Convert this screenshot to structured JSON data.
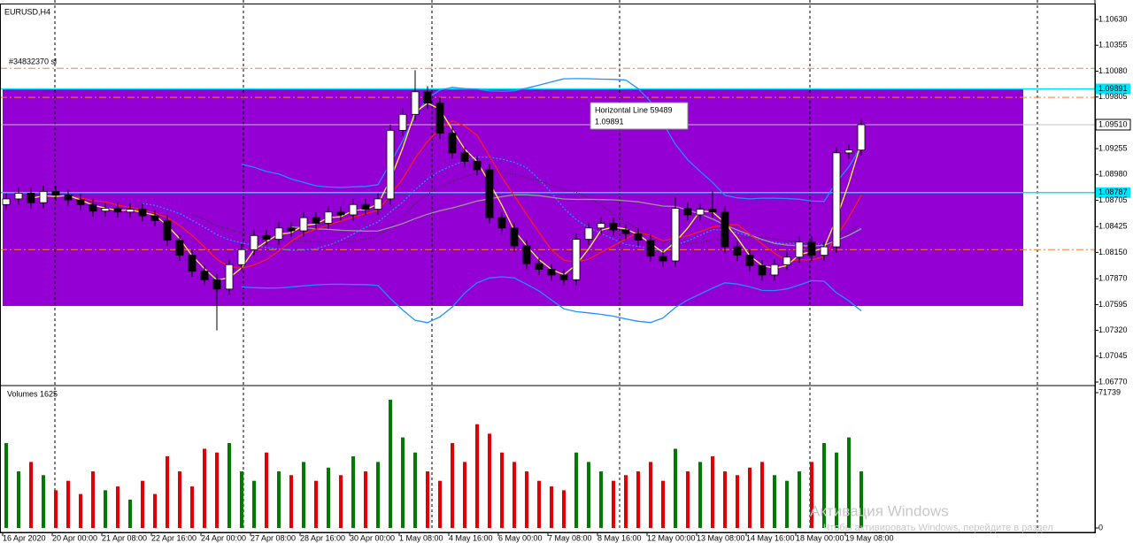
{
  "chart_data": [
    {
      "type": "candlestick",
      "title": "EURUSD,H4",
      "categories": [
        "16 Apr 2020",
        null,
        null,
        null,
        "20 Apr 00:00",
        null,
        null,
        null,
        "21 Apr 08:00",
        null,
        null,
        null,
        "22 Apr 16:00",
        null,
        null,
        null,
        "24 Apr 00:00",
        null,
        null,
        null,
        "27 Apr 08:00",
        null,
        null,
        null,
        "28 Apr 16:00",
        null,
        null,
        null,
        "30 Apr 00:00",
        null,
        null,
        null,
        "1 May 08:00",
        null,
        null,
        null,
        "4 May 16:00",
        null,
        null,
        null,
        "6 May 00:00",
        null,
        null,
        null,
        "7 May 08:00",
        null,
        null,
        null,
        "8 May 16:00",
        null,
        null,
        null,
        "12 May 00:00",
        null,
        null,
        null,
        "13 May 08:00",
        null,
        null,
        null,
        "14 May 16:00",
        null,
        null,
        null,
        "18 May 00:00",
        null,
        null,
        null,
        "19 May 08:00",
        null
      ],
      "open": [
        1.0866,
        1.0872,
        1.0878,
        1.0868,
        1.088,
        1.0876,
        1.0871,
        1.0866,
        1.0859,
        1.0862,
        1.0858,
        1.0861,
        1.0854,
        1.0849,
        1.0828,
        1.0812,
        1.0795,
        1.0786,
        1.0776,
        1.0802,
        1.0818,
        1.0833,
        1.0829,
        1.0841,
        1.0838,
        1.0852,
        1.0846,
        1.0858,
        1.0855,
        1.0866,
        1.0861,
        1.0872,
        1.0945,
        1.0962,
        1.0986,
        1.0974,
        1.0942,
        1.0921,
        1.0912,
        1.0903,
        1.0852,
        1.0841,
        1.0822,
        1.0803,
        1.0797,
        1.0791,
        1.0786,
        1.0829,
        1.0841,
        1.0846,
        1.0839,
        1.0835,
        1.0828,
        1.0811,
        1.0806,
        1.0862,
        1.0855,
        1.0861,
        1.0858,
        1.0821,
        1.0812,
        1.0801,
        1.0791,
        1.0802,
        1.081,
        1.0826,
        1.0812,
        1.0821,
        1.0921,
        1.0924
      ],
      "high": [
        1.0878,
        1.0884,
        1.0884,
        1.0886,
        1.0886,
        1.0882,
        1.0877,
        1.0872,
        1.0868,
        1.0868,
        1.0867,
        1.0867,
        1.086,
        1.0855,
        1.0834,
        1.0818,
        1.0801,
        1.0792,
        1.0808,
        1.0824,
        1.0839,
        1.0839,
        1.0847,
        1.0847,
        1.0858,
        1.0858,
        1.0864,
        1.0864,
        1.0872,
        1.0872,
        1.0878,
        1.0951,
        1.0968,
        1.1009,
        1.0992,
        1.098,
        1.0948,
        1.0927,
        1.0918,
        1.0909,
        1.0858,
        1.0847,
        1.0828,
        1.0809,
        1.0803,
        1.0797,
        1.0835,
        1.0847,
        1.0852,
        1.0852,
        1.0845,
        1.0841,
        1.0834,
        1.0817,
        1.0874,
        1.0868,
        1.0867,
        1.088,
        1.0864,
        1.0827,
        1.0818,
        1.0807,
        1.0808,
        1.0816,
        1.0832,
        1.0832,
        1.0827,
        1.0927,
        1.093,
        1.0957
      ],
      "low": [
        1.086,
        1.0866,
        1.0862,
        1.0862,
        1.087,
        1.0865,
        1.086,
        1.0853,
        1.0853,
        1.0852,
        1.0852,
        1.0848,
        1.0843,
        1.0822,
        1.0806,
        1.0789,
        1.078,
        1.0732,
        1.077,
        1.0796,
        1.0812,
        1.0823,
        1.0823,
        1.0832,
        1.0832,
        1.084,
        1.084,
        1.0849,
        1.0849,
        1.0855,
        1.0855,
        1.0866,
        1.0939,
        1.0956,
        1.0968,
        1.0936,
        1.0915,
        1.0906,
        1.0897,
        1.0846,
        1.0835,
        1.0816,
        1.0797,
        1.0791,
        1.0785,
        1.078,
        1.078,
        1.0823,
        1.0835,
        1.0833,
        1.0829,
        1.0822,
        1.0805,
        1.08,
        1.08,
        1.0849,
        1.0849,
        1.0852,
        1.0815,
        1.0806,
        1.0795,
        1.0785,
        1.0785,
        1.0796,
        1.0804,
        1.0806,
        1.0806,
        1.0815,
        1.0915,
        1.0918
      ],
      "close": [
        1.0872,
        1.0878,
        1.0868,
        1.088,
        1.0876,
        1.0871,
        1.0866,
        1.0859,
        1.0862,
        1.0858,
        1.0861,
        1.0854,
        1.0849,
        1.0828,
        1.0812,
        1.0795,
        1.0786,
        1.0776,
        1.0802,
        1.0818,
        1.0833,
        1.0829,
        1.0841,
        1.0838,
        1.0852,
        1.0846,
        1.0858,
        1.0855,
        1.0866,
        1.0861,
        1.0872,
        1.0945,
        1.0962,
        1.0986,
        1.0974,
        1.0942,
        1.0921,
        1.0912,
        1.0903,
        1.0852,
        1.0841,
        1.0822,
        1.0803,
        1.0797,
        1.0791,
        1.0786,
        1.0829,
        1.0841,
        1.0846,
        1.0839,
        1.0835,
        1.0828,
        1.0811,
        1.0806,
        1.0862,
        1.0855,
        1.0861,
        1.0858,
        1.0821,
        1.0812,
        1.0801,
        1.0791,
        1.0802,
        1.081,
        1.0826,
        1.0812,
        1.0821,
        1.0921,
        1.0924,
        1.0951
      ],
      "up_color": "#ffffff",
      "down_color": "#000000",
      "ylim": [
        1.06742,
        1.10762
      ],
      "yticks": [
        {
          "value": 1.1063,
          "label": "1.10630"
        },
        1.10355,
        {
          "value": 1.1008,
          "label": "1.10080"
        },
        1.09805,
        1.09255,
        {
          "value": 1.0898,
          "label": "1.08980"
        },
        1.08705,
        1.08425,
        {
          "value": 1.0815,
          "label": "1.08150"
        },
        {
          "value": 1.0787,
          "label": "1.07870"
        },
        1.07595,
        {
          "value": 1.0732,
          "label": "1.07320"
        },
        1.07045,
        {
          "value": 1.0677,
          "label": "1.06770"
        }
      ],
      "rectangle": {
        "top": 1.09891,
        "bottom": 1.0758,
        "color": "#9400d3"
      },
      "current_price": {
        "value": 1.0951,
        "label": "1.09510"
      },
      "lines": [
        {
          "label": "#34832370 sl",
          "value": 1.1011,
          "color": "#ff7f27",
          "style": "dashdot"
        },
        {
          "label": "Horizontal Line 59489",
          "value": 1.09891,
          "color": "#00e5ff",
          "style": "solid",
          "tag": true
        },
        {
          "value": 1.098,
          "color": "#ff7f27",
          "style": "dashdot"
        },
        {
          "value": 1.08787,
          "color": "#00e5ff",
          "style": "solid",
          "tag": true
        },
        {
          "value": 1.0818,
          "color": "#ff7f27",
          "style": "dashdot"
        }
      ]
    },
    {
      "type": "bar",
      "title": "Volumes 1625",
      "values": [
        45000,
        30000,
        35000,
        28000,
        20000,
        25000,
        18000,
        30000,
        20000,
        22000,
        15000,
        25000,
        18000,
        38000,
        30000,
        22000,
        42000,
        40000,
        45000,
        30000,
        25000,
        40000,
        30000,
        28000,
        35000,
        25000,
        32000,
        28000,
        38000,
        30000,
        35000,
        68000,
        48000,
        40000,
        30000,
        25000,
        45000,
        35000,
        55000,
        50000,
        40000,
        35000,
        30000,
        25000,
        22000,
        20000,
        40000,
        35000,
        30000,
        25000,
        28000,
        30000,
        35000,
        25000,
        42000,
        30000,
        35000,
        38000,
        30000,
        28000,
        32000,
        35000,
        28000,
        25000,
        30000,
        35000,
        45000,
        40000,
        48000,
        30000
      ],
      "up_color": "#007a00",
      "down_color": "#e00000",
      "ylim": [
        0,
        71739
      ],
      "yticks": [
        71739,
        0
      ]
    }
  ],
  "watermark": {
    "title": "Активация Windows",
    "text": "Чтобы активировать Windows, перейдите в раздел"
  }
}
